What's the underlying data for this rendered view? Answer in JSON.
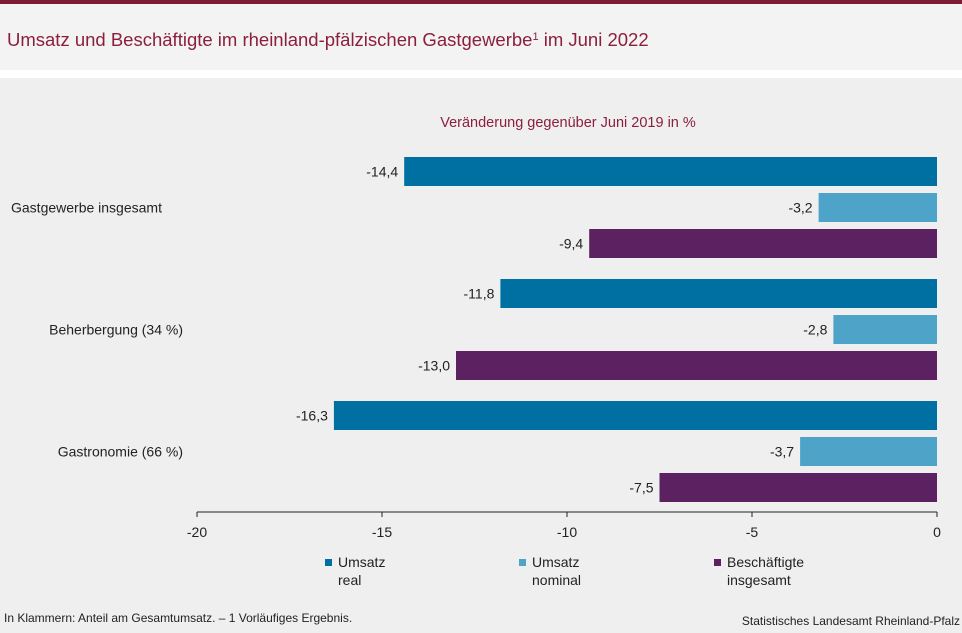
{
  "title": "Umsatz und Beschäftigte im rheinland-pfälzischen Gastgewerbe",
  "title_sup": "1",
  "title_suffix": " im Juni 2022",
  "footnote": "In Klammern: Anteil am Gesamtumsatz. – 1 Vorläufiges Ergebnis.",
  "source": "Statistisches Landesamt Rheinland-Pfalz",
  "chart_data": {
    "type": "bar",
    "orientation": "horizontal",
    "title": "Veränderung gegenüber Juni 2019 in %",
    "categories": [
      "Gastgewerbe insgesamt",
      "Beherbergung (34 %)",
      "Gastronomie (66 %)"
    ],
    "series": [
      {
        "name": "Umsatz\nreal",
        "color": "#0070a3",
        "values": [
          -14.4,
          -11.8,
          -16.3
        ],
        "labels": [
          "-14,4",
          "-11,8",
          "-16,3"
        ]
      },
      {
        "name": "Umsatz\nnominal",
        "color": "#4da3c8",
        "values": [
          -3.2,
          -2.8,
          -3.7
        ],
        "labels": [
          "-3,2",
          "-2,8",
          "-3,7"
        ]
      },
      {
        "name": "Beschäftigte\ninsgesamt",
        "color": "#5b2160",
        "values": [
          -9.4,
          -13.0,
          -7.5
        ],
        "labels": [
          "-9,4",
          "-13,0",
          "-7,5"
        ]
      }
    ],
    "xlim": [
      -20,
      0
    ],
    "xticks": [
      -20,
      -15,
      -10,
      -5,
      0
    ],
    "xtick_labels": [
      "-20",
      "-15",
      "-10",
      "-5",
      "0"
    ],
    "grid": false,
    "legend_position": "bottom"
  }
}
